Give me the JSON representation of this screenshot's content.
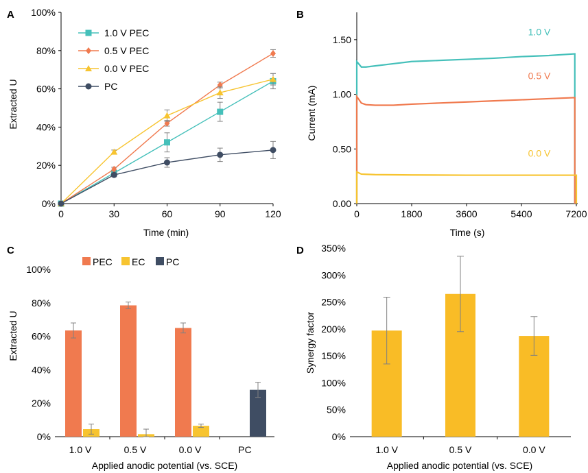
{
  "chart_data": [
    {
      "panel_label": "A",
      "type": "line",
      "xlabel": "Time (min)",
      "ylabel": "Extracted U",
      "x": [
        0,
        30,
        60,
        90,
        120
      ],
      "xlim": [
        0,
        120
      ],
      "ylim": [
        0,
        100
      ],
      "xticks": [
        "0",
        "30",
        "60",
        "90",
        "120"
      ],
      "yticks": [
        "0%",
        "20%",
        "40%",
        "60%",
        "80%",
        "100%"
      ],
      "legend_position": "top-left",
      "series": [
        {
          "name": "1.0 V PEC",
          "color": "#45c0ba",
          "marker": "square",
          "values": [
            0,
            16,
            32,
            48,
            64
          ],
          "errors": [
            0,
            1,
            5,
            5,
            4
          ]
        },
        {
          "name": "0.5 V PEC",
          "color": "#f07a4f",
          "marker": "diamond",
          "values": [
            0,
            18,
            42,
            62,
            78.5
          ],
          "errors": [
            0,
            1,
            1.5,
            1.5,
            2
          ]
        },
        {
          "name": "0.0 V PEC",
          "color": "#f7c430",
          "marker": "triangle",
          "values": [
            0,
            27,
            46,
            58,
            65
          ],
          "errors": [
            0,
            1,
            3,
            3,
            3
          ]
        },
        {
          "name": "PC",
          "color": "#3f4d63",
          "marker": "circle",
          "values": [
            0,
            15,
            21.5,
            25.5,
            28
          ],
          "errors": [
            0,
            1,
            2.5,
            3.5,
            4.5
          ]
        }
      ]
    },
    {
      "panel_label": "B",
      "type": "line",
      "xlabel": "Time (s)",
      "ylabel": "Current (mA)",
      "xlim": [
        0,
        7200
      ],
      "ylim": [
        0,
        1.75
      ],
      "xticks": [
        "0",
        "1800",
        "3600",
        "5400",
        "7200"
      ],
      "yticks": [
        "0.00",
        "0.50",
        "1.00",
        "1.50"
      ],
      "series": [
        {
          "name": "1.0 V",
          "color": "#45c0ba",
          "x": [
            0,
            150,
            300,
            600,
            1200,
            1800,
            2700,
            3600,
            4500,
            5400,
            6300,
            7150
          ],
          "values": [
            1.3,
            1.25,
            1.25,
            1.26,
            1.28,
            1.3,
            1.31,
            1.32,
            1.33,
            1.345,
            1.355,
            1.37
          ]
        },
        {
          "name": "0.5 V",
          "color": "#f07a4f",
          "x": [
            0,
            150,
            300,
            600,
            1200,
            1800,
            2700,
            3600,
            4500,
            5400,
            6300,
            7150
          ],
          "values": [
            0.98,
            0.92,
            0.905,
            0.9,
            0.9,
            0.91,
            0.92,
            0.93,
            0.94,
            0.95,
            0.96,
            0.97
          ]
        },
        {
          "name": "0.0 V",
          "color": "#f7c430",
          "x": [
            0,
            150,
            300,
            600,
            1800,
            3600,
            5400,
            7200
          ],
          "values": [
            0.29,
            0.27,
            0.268,
            0.265,
            0.262,
            0.26,
            0.26,
            0.26
          ]
        }
      ]
    },
    {
      "panel_label": "C",
      "type": "bar",
      "xlabel": "Applied anodic potential (vs. SCE)",
      "ylabel": "Extracted U",
      "categories": [
        "1.0 V",
        "0.5 V",
        "0.0 V",
        "PC"
      ],
      "ylim": [
        0,
        100
      ],
      "yticks": [
        "0%",
        "20%",
        "40%",
        "60%",
        "80%",
        "100%"
      ],
      "legend_position": "top",
      "series": [
        {
          "name": "PEC",
          "color": "#f07a4f",
          "values": [
            63.5,
            78.5,
            65,
            null
          ],
          "errors": [
            4.5,
            2,
            3,
            null
          ]
        },
        {
          "name": "EC",
          "color": "#f7c430",
          "values": [
            4.5,
            1.5,
            6.5,
            null
          ],
          "errors": [
            3,
            3,
            1,
            null
          ]
        },
        {
          "name": "PC",
          "color": "#3f4d63",
          "values": [
            null,
            null,
            null,
            28
          ],
          "errors": [
            null,
            null,
            null,
            4.5
          ]
        }
      ]
    },
    {
      "panel_label": "D",
      "type": "bar",
      "xlabel": "Applied anodic potential (vs. SCE)",
      "ylabel": "Synergy factor",
      "categories": [
        "1.0 V",
        "0.5 V",
        "0.0 V"
      ],
      "ylim": [
        0,
        350
      ],
      "yticks": [
        "0%",
        "50%",
        "100%",
        "150%",
        "200%",
        "250%",
        "300%",
        "350%"
      ],
      "series": [
        {
          "color": "#f9bc26",
          "values": [
            197,
            265,
            187
          ],
          "errors": [
            62,
            70,
            36
          ]
        }
      ]
    }
  ]
}
